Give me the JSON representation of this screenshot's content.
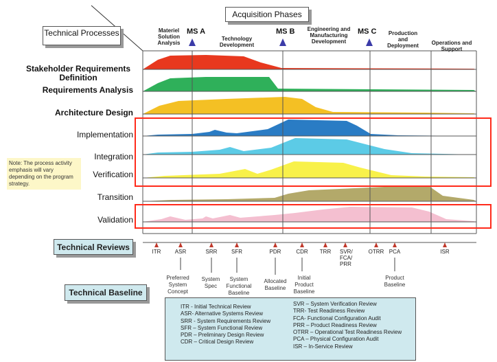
{
  "header": {
    "acquisition_phases": "Acquisition Phases",
    "technical_processes": "Technical Processes"
  },
  "phases": [
    "Materiel Solution Analysis",
    "Technology Development",
    "Engineering and Manufacturing Development",
    "Production and Deployment",
    "Operations and Support"
  ],
  "milestones": [
    "MS A",
    "MS B",
    "MS C"
  ],
  "milestone_color": "#3b3ba8",
  "processes": [
    {
      "label": "Stakeholder Requirements Definition",
      "color": "#e8381e"
    },
    {
      "label": "Requirements Analysis",
      "color": "#2fb05a"
    },
    {
      "label": "Architecture Design",
      "color": "#f4c024"
    },
    {
      "label": "Implementation",
      "color": "#2a7cc4"
    },
    {
      "label": "Integration",
      "color": "#5ccbe6"
    },
    {
      "label": "Verification",
      "color": "#f8f14a"
    },
    {
      "label": "Transition",
      "color": "#b3a96a"
    },
    {
      "label": "Validation",
      "color": "#f4bfd0"
    }
  ],
  "note": "Note: The process activity emphasis will vary depending on the program strategy.",
  "highlight_color": "#ff2a1a",
  "technical_reviews": {
    "title": "Technical Reviews",
    "items": [
      "ITR",
      "ASR",
      "SRR",
      "SFR",
      "PDR",
      "CDR",
      "TRR",
      "SVR/ FCA/ PRR",
      "OTRR",
      "PCA",
      "ISR"
    ],
    "marker_color": "#c0392b"
  },
  "technical_baseline": {
    "title": "Technical Baseline",
    "items": [
      "Preferred System Concept",
      "System Spec",
      "System Functional Baseline",
      "Allocated Baseline",
      "Initial Product Baseline",
      "Product Baseline"
    ]
  },
  "legend": {
    "left": [
      "ITR - Initial Technical Review",
      "ASR- Alternative Systems Review",
      "SRR - System Requirements Review",
      "SFR – System Functional Review",
      "PDR – Preliminary Design Review",
      "CDR – Critical Design Review"
    ],
    "right": [
      "SVR – System Verification Review",
      "TRR- Test Readiness Review",
      "FCA- Functional Configuration Audit",
      "PRR – Product Readiness Review",
      "OTRR – Operational Test Readiness Review",
      "PCA – Physical Configuration Audit",
      "ISR – In-Service Review"
    ]
  }
}
